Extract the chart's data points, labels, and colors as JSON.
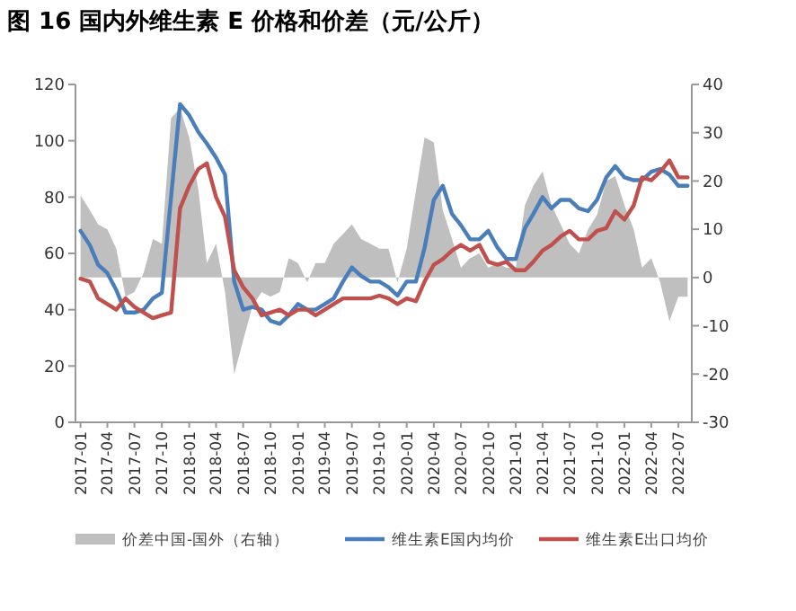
{
  "chart_data": {
    "type": "line",
    "title": "图 16 国内外维生素 E 价格和价差（元/公斤）",
    "x": [
      "2017-01",
      "2017-02",
      "2017-03",
      "2017-04",
      "2017-05",
      "2017-06",
      "2017-07",
      "2017-08",
      "2017-09",
      "2017-10",
      "2017-11",
      "2017-12",
      "2018-01",
      "2018-02",
      "2018-03",
      "2018-04",
      "2018-05",
      "2018-06",
      "2018-07",
      "2018-08",
      "2018-09",
      "2018-10",
      "2018-11",
      "2018-12",
      "2019-01",
      "2019-02",
      "2019-03",
      "2019-04",
      "2019-05",
      "2019-06",
      "2019-07",
      "2019-08",
      "2019-09",
      "2019-10",
      "2019-11",
      "2019-12",
      "2020-01",
      "2020-02",
      "2020-03",
      "2020-04",
      "2020-05",
      "2020-06",
      "2020-07",
      "2020-08",
      "2020-09",
      "2020-10",
      "2020-11",
      "2020-12",
      "2021-01",
      "2021-02",
      "2021-03",
      "2021-04",
      "2021-05",
      "2021-06",
      "2021-07",
      "2021-08",
      "2021-09",
      "2021-10",
      "2021-11",
      "2021-12",
      "2022-01",
      "2022-02",
      "2022-03",
      "2022-04",
      "2022-05",
      "2022-06",
      "2022-07",
      "2022-08"
    ],
    "series": [
      {
        "name": "价差中国-国外（右轴）",
        "type": "area",
        "axis": "y2",
        "color": "#bfbfbf",
        "values": [
          17,
          14,
          11,
          10,
          6,
          -4,
          -3,
          1,
          8,
          7,
          33,
          35,
          29,
          18,
          3,
          7,
          -3,
          -20,
          -13,
          -6,
          -3,
          -4,
          -3,
          4,
          3,
          -1,
          3,
          3,
          7,
          9,
          11,
          8,
          7,
          6,
          6,
          -1,
          6,
          18,
          29,
          28,
          14,
          8,
          2,
          4,
          5,
          2,
          3,
          2,
          2,
          15,
          19,
          22,
          15,
          11,
          7,
          5,
          10,
          13,
          20,
          21,
          15,
          10,
          2,
          4,
          -1,
          -9,
          -4,
          -4
        ]
      },
      {
        "name": "维生素E国内均价",
        "color": "#4a7ebb",
        "values": [
          68,
          63,
          56,
          53,
          47,
          39,
          39,
          40,
          44,
          46,
          80,
          113,
          109,
          103,
          99,
          94,
          88,
          50,
          40,
          41,
          40,
          36,
          35,
          38,
          42,
          40,
          40,
          42,
          44,
          50,
          55,
          52,
          50,
          50,
          48,
          45,
          50,
          50,
          62,
          79,
          84,
          74,
          70,
          65,
          65,
          68,
          62,
          58,
          58,
          69,
          74,
          80,
          76,
          79,
          79,
          76,
          75,
          79,
          87,
          91,
          87,
          86,
          86,
          89,
          90,
          88,
          84,
          84
        ]
      },
      {
        "name": "维生素E出口均价",
        "color": "#c0504d",
        "values": [
          51,
          50,
          44,
          42,
          40,
          44,
          41,
          39,
          37,
          38,
          39,
          76,
          84,
          90,
          92,
          80,
          73,
          54,
          48,
          44,
          38,
          39,
          40,
          38,
          40,
          40,
          38,
          40,
          42,
          44,
          44,
          44,
          44,
          45,
          44,
          42,
          44,
          43,
          50,
          56,
          58,
          61,
          63,
          61,
          63,
          57,
          56,
          57,
          54,
          54,
          57,
          61,
          63,
          66,
          68,
          65,
          65,
          68,
          69,
          75,
          72,
          77,
          87,
          86,
          89,
          93,
          87,
          87
        ]
      }
    ],
    "xlim": [
      "2016-12-15",
      "2022-08-15"
    ],
    "xticks": [
      "2017-01",
      "2017-04",
      "2017-07",
      "2017-10",
      "2018-01",
      "2018-04",
      "2018-07",
      "2018-10",
      "2019-01",
      "2019-04",
      "2019-07",
      "2019-10",
      "2020-01",
      "2020-04",
      "2020-07",
      "2020-10",
      "2021-01",
      "2021-04",
      "2021-07",
      "2021-10",
      "2022-01",
      "2022-04",
      "2022-07"
    ],
    "ylim": [
      0,
      120
    ],
    "yticks": [
      0,
      20,
      40,
      60,
      80,
      100,
      120
    ],
    "y2lim": [
      -30,
      40
    ],
    "y2ticks": [
      -30,
      -20,
      -10,
      0,
      10,
      20,
      30,
      40
    ],
    "grid": false,
    "legend": "bottom"
  }
}
